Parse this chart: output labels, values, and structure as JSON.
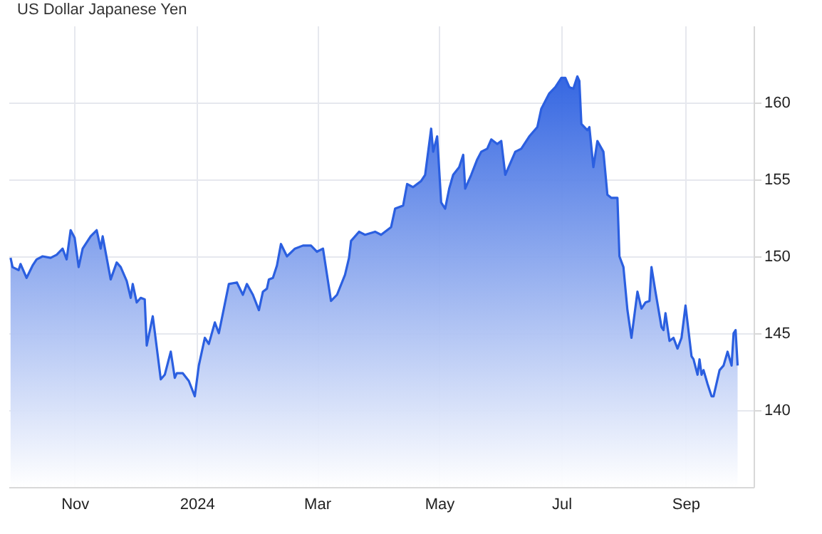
{
  "chart_data": {
    "type": "area",
    "title": "US Dollar Japanese Yen",
    "x": [
      "2023-09-30",
      "2023-10-01",
      "2023-10-04",
      "2023-10-05",
      "2023-10-08",
      "2023-10-11",
      "2023-10-13",
      "2023-10-16",
      "2023-10-20",
      "2023-10-23",
      "2023-10-26",
      "2023-10-28",
      "2023-10-30",
      "2023-11-01",
      "2023-11-03",
      "2023-11-05",
      "2023-11-09",
      "2023-11-12",
      "2023-11-14",
      "2023-11-15",
      "2023-11-19",
      "2023-11-22",
      "2023-11-24",
      "2023-11-27",
      "2023-11-29",
      "2023-11-30",
      "2023-12-02",
      "2023-12-04",
      "2023-12-06",
      "2023-12-07",
      "2023-12-10",
      "2023-12-11",
      "2023-12-14",
      "2023-12-16",
      "2023-12-19",
      "2023-12-21",
      "2023-12-22",
      "2023-12-25",
      "2023-12-28",
      "2023-12-31",
      "2024-01-02",
      "2024-01-05",
      "2024-01-07",
      "2024-01-10",
      "2024-01-12",
      "2024-01-17",
      "2024-01-21",
      "2024-01-24",
      "2024-01-26",
      "2024-01-29",
      "2024-02-01",
      "2024-02-03",
      "2024-02-05",
      "2024-02-06",
      "2024-02-08",
      "2024-02-10",
      "2024-02-12",
      "2024-02-15",
      "2024-02-19",
      "2024-02-23",
      "2024-02-27",
      "2024-03-01",
      "2024-03-04",
      "2024-03-06",
      "2024-03-08",
      "2024-03-11",
      "2024-03-15",
      "2024-03-17",
      "2024-03-18",
      "2024-03-22",
      "2024-03-25",
      "2024-03-30",
      "2024-04-02",
      "2024-04-07",
      "2024-04-09",
      "2024-04-13",
      "2024-04-15",
      "2024-04-18",
      "2024-04-22",
      "2024-04-24",
      "2024-04-27",
      "2024-04-28",
      "2024-04-30",
      "2024-05-02",
      "2024-05-04",
      "2024-05-06",
      "2024-05-08",
      "2024-05-11",
      "2024-05-13",
      "2024-05-14",
      "2024-05-17",
      "2024-05-20",
      "2024-05-22",
      "2024-05-25",
      "2024-05-27",
      "2024-05-30",
      "2024-06-01",
      "2024-06-03",
      "2024-06-05",
      "2024-06-08",
      "2024-06-11",
      "2024-06-15",
      "2024-06-19",
      "2024-06-21",
      "2024-06-25",
      "2024-06-28",
      "2024-07-01",
      "2024-07-03",
      "2024-07-05",
      "2024-07-07",
      "2024-07-09",
      "2024-07-10",
      "2024-07-11",
      "2024-07-14",
      "2024-07-15",
      "2024-07-17",
      "2024-07-19",
      "2024-07-22",
      "2024-07-24",
      "2024-07-26",
      "2024-07-29",
      "2024-07-30",
      "2024-08-01",
      "2024-08-03",
      "2024-08-05",
      "2024-08-08",
      "2024-08-10",
      "2024-08-12",
      "2024-08-14",
      "2024-08-15",
      "2024-08-17",
      "2024-08-20",
      "2024-08-21",
      "2024-08-22",
      "2024-08-24",
      "2024-08-26",
      "2024-08-28",
      "2024-08-30",
      "2024-09-01",
      "2024-09-02",
      "2024-09-04",
      "2024-09-05",
      "2024-09-07",
      "2024-09-08",
      "2024-09-09",
      "2024-09-10",
      "2024-09-12",
      "2024-09-14",
      "2024-09-15",
      "2024-09-18",
      "2024-09-20",
      "2024-09-22",
      "2024-09-24",
      "2024-09-25",
      "2024-09-26",
      "2024-09-27"
    ],
    "series": [
      {
        "color": "#2b5fe0",
        "values": [
          149.9,
          149.3,
          149.1,
          149.5,
          148.6,
          149.4,
          149.8,
          150.0,
          149.9,
          150.1,
          150.5,
          149.8,
          151.7,
          151.2,
          149.3,
          150.5,
          151.3,
          151.7,
          150.5,
          151.3,
          148.5,
          149.6,
          149.3,
          148.4,
          147.3,
          148.2,
          147.0,
          147.3,
          147.2,
          144.2,
          146.1,
          145.1,
          142.0,
          142.3,
          143.8,
          142.1,
          142.4,
          142.4,
          141.9,
          140.9,
          142.9,
          144.7,
          144.3,
          145.7,
          145.0,
          148.2,
          148.3,
          147.5,
          148.2,
          147.5,
          146.5,
          147.7,
          147.9,
          148.5,
          148.6,
          149.4,
          150.8,
          150.0,
          150.5,
          150.7,
          150.7,
          150.3,
          150.5,
          148.8,
          147.1,
          147.5,
          148.8,
          149.9,
          151.0,
          151.6,
          151.4,
          151.6,
          151.4,
          151.9,
          153.1,
          153.3,
          154.7,
          154.5,
          154.9,
          155.3,
          158.3,
          156.8,
          157.8,
          153.5,
          153.1,
          154.4,
          155.3,
          155.8,
          156.6,
          154.4,
          155.3,
          156.3,
          156.8,
          157.0,
          157.6,
          157.3,
          157.5,
          155.3,
          155.9,
          156.8,
          157.0,
          157.8,
          158.4,
          159.6,
          160.6,
          161.0,
          161.6,
          161.6,
          161.0,
          160.9,
          161.7,
          161.4,
          158.6,
          158.2,
          158.4,
          155.8,
          157.5,
          156.8,
          154.0,
          153.8,
          153.8,
          150.0,
          149.3,
          146.5,
          144.7,
          147.7,
          146.6,
          147.0,
          147.1,
          149.3,
          147.7,
          145.4,
          145.2,
          146.3,
          144.5,
          144.7,
          144.0,
          144.7,
          146.8,
          145.7,
          143.5,
          143.3,
          142.3,
          143.3,
          142.3,
          142.6,
          141.7,
          140.9,
          140.9,
          142.6,
          142.9,
          143.8,
          142.9,
          145.0,
          145.2,
          142.9
        ]
      }
    ],
    "xlim": [
      "2023-09-29",
      "2024-10-05"
    ],
    "xticks": [
      {
        "value": "2023-11-01",
        "label": "Nov"
      },
      {
        "value": "2024-01-01",
        "label": "2024"
      },
      {
        "value": "2024-03-01",
        "label": "Mar"
      },
      {
        "value": "2024-05-01",
        "label": "May"
      },
      {
        "value": "2024-07-01",
        "label": "Jul"
      },
      {
        "value": "2024-09-01",
        "label": "Sep"
      }
    ],
    "ylim": [
      135,
      165
    ],
    "yticks": [
      140,
      145,
      150,
      155,
      160
    ],
    "grid": true
  }
}
